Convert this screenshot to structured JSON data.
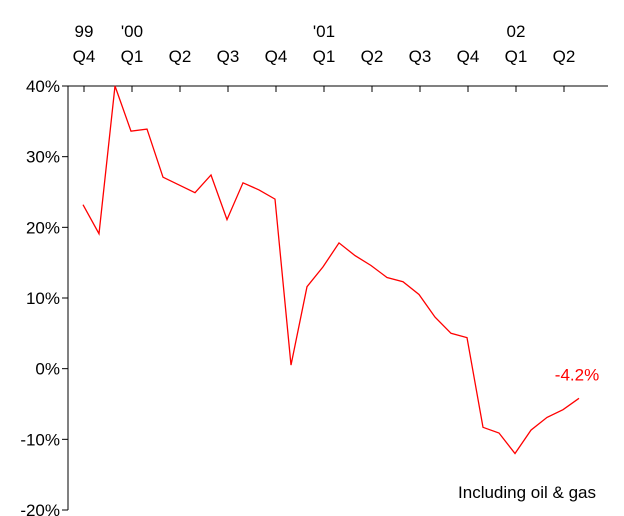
{
  "chart_data": {
    "type": "line",
    "title": "",
    "xlabel": "",
    "ylabel": "",
    "ylim": [
      -20,
      40
    ],
    "y_ticks": [
      {
        "value": 40,
        "label": "40%"
      },
      {
        "value": 30,
        "label": "30%"
      },
      {
        "value": 20,
        "label": "20%"
      },
      {
        "value": 10,
        "label": "10%"
      },
      {
        "value": 0,
        "label": "0%"
      },
      {
        "value": -10,
        "label": "-10%"
      },
      {
        "value": -20,
        "label": "-20%"
      }
    ],
    "x_ticks": [
      {
        "year": "99",
        "quarter": "Q4"
      },
      {
        "year": "'00",
        "quarter": "Q1"
      },
      {
        "year": "",
        "quarter": "Q2"
      },
      {
        "year": "",
        "quarter": "Q3"
      },
      {
        "year": "",
        "quarter": "Q4"
      },
      {
        "year": "'01",
        "quarter": "Q1"
      },
      {
        "year": "",
        "quarter": "Q2"
      },
      {
        "year": "",
        "quarter": "Q3"
      },
      {
        "year": "",
        "quarter": "Q4"
      },
      {
        "year": "02",
        "quarter": "Q1"
      },
      {
        "year": "",
        "quarter": "Q2"
      }
    ],
    "series": [
      {
        "color": "#ff0000",
        "values": [
          23.2,
          19.1,
          40.0,
          33.6,
          33.9,
          27.1,
          26.0,
          24.9,
          27.4,
          21.1,
          26.3,
          25.3,
          24.0,
          0.5,
          11.6,
          14.4,
          17.8,
          16.0,
          14.6,
          12.9,
          12.3,
          10.5,
          7.3,
          5.0,
          4.4,
          -8.3,
          -9.1,
          -12.0,
          -8.7,
          -6.9,
          -5.8,
          -4.2
        ]
      }
    ],
    "end_label": "-4.2%",
    "annotation": "Including oil & gas",
    "grid": false,
    "legend": "none"
  }
}
